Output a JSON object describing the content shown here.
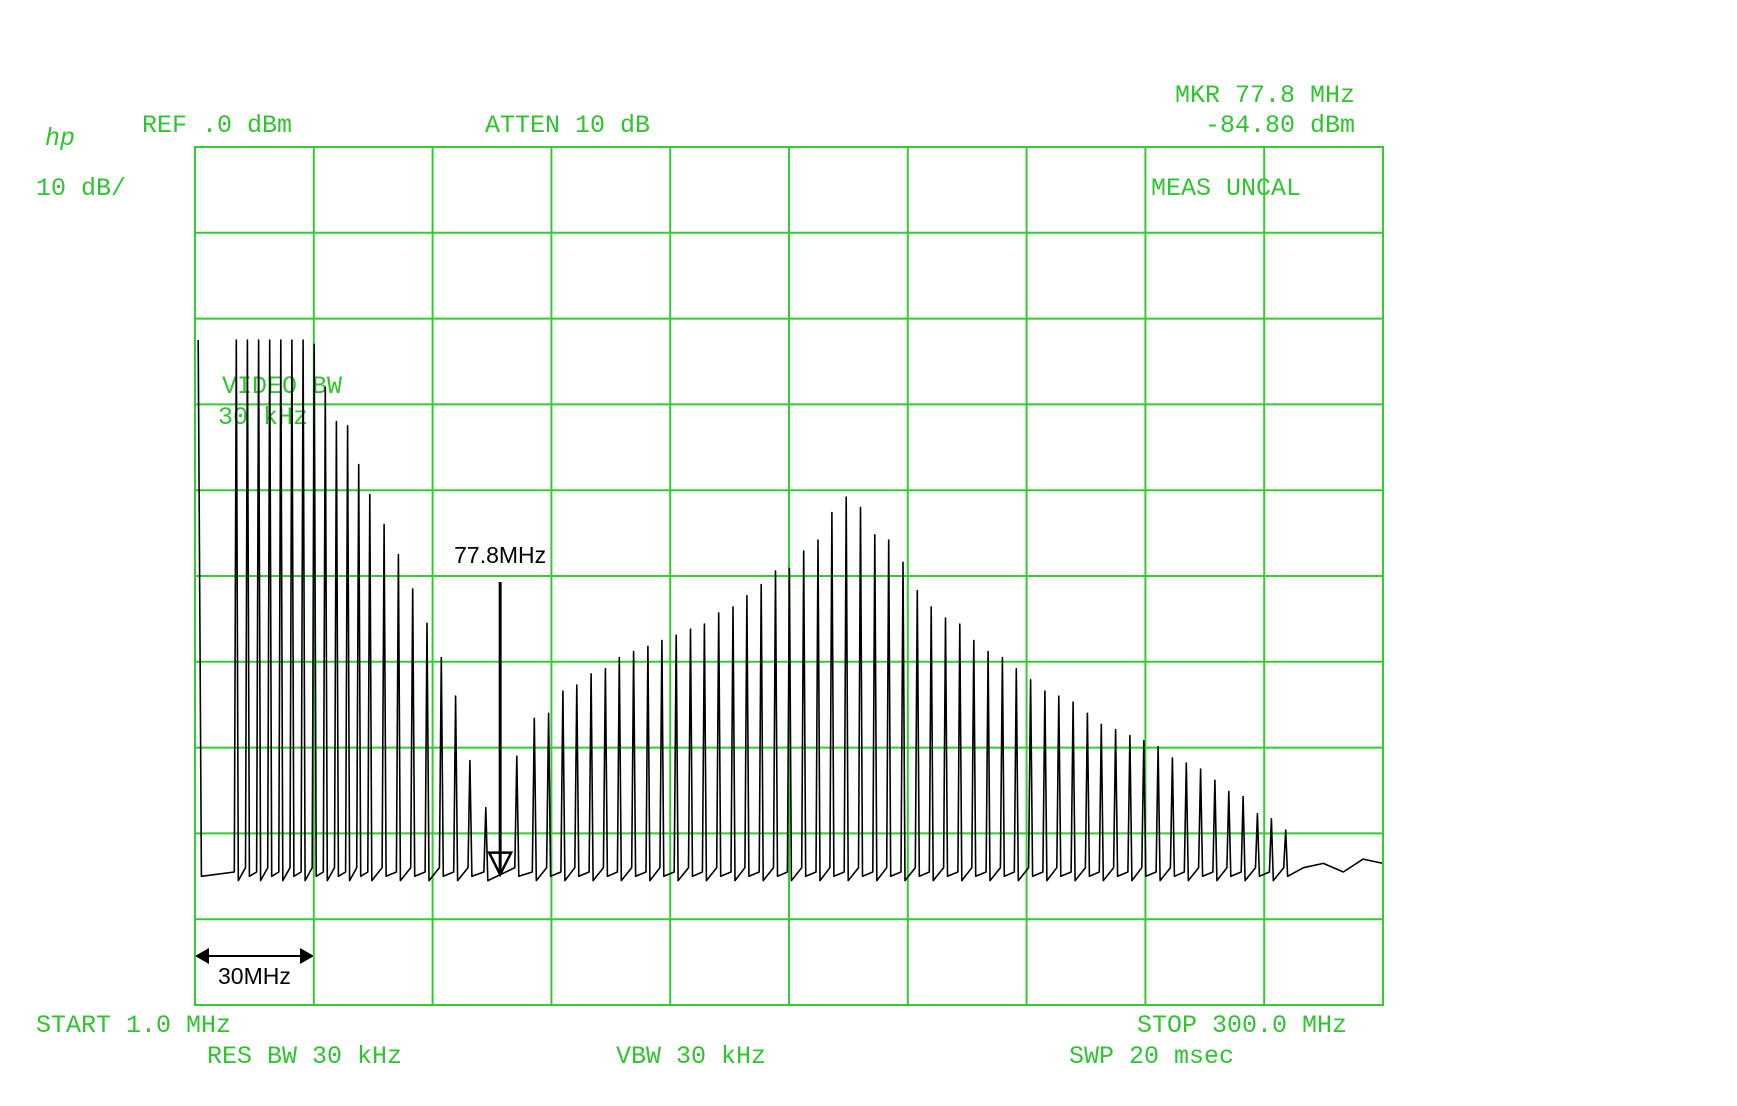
{
  "chart_data": {
    "type": "line",
    "header": {
      "logo": "hp",
      "ref": "REF .0 dBm",
      "atten": "ATTEN 10 dB",
      "scale": "10 dB/",
      "marker_freq": "MKR 77.8 MHz",
      "marker_level": "-84.80 dBm",
      "status": "MEAS UNCAL",
      "video_bw": [
        "VIDEO BW",
        "30 kHz"
      ]
    },
    "footer": {
      "start": "START 1.0 MHz",
      "stop": "STOP 300.0 MHz",
      "res_bw": "RES BW 30 kHz",
      "vbw": "VBW 30 kHz",
      "sweep": "SWP 20 msec"
    },
    "annotations": [
      {
        "text": "77.8MHz"
      },
      {
        "text": "30MHz"
      }
    ],
    "marker": {
      "x": 77.8,
      "y": -84.8
    },
    "xlim": [
      1,
      300
    ],
    "ylim": [
      -100,
      0
    ],
    "xticks": [
      1,
      30.9,
      60.8,
      90.7,
      120.6,
      150.5,
      180.4,
      210.3,
      240.2,
      270.1,
      300
    ],
    "yticks": [
      -100,
      -90,
      -80,
      -70,
      -60,
      -50,
      -40,
      -30,
      -20,
      -10,
      0
    ],
    "grid": true,
    "grid_color": "#33cc33",
    "series": [
      {
        "color": "#000000",
        "x": [
          1.8,
          2.6,
          10.9,
          11.4,
          11.9,
          13.7,
          14.2,
          14.7,
          16.5,
          17.0,
          17.5,
          19.3,
          19.8,
          20.3,
          22.1,
          22.6,
          23.1,
          24.9,
          25.4,
          25.9,
          27.7,
          28.2,
          28.7,
          30.5,
          31.0,
          31.5,
          33.3,
          33.8,
          34.3,
          36.1,
          36.6,
          37.1,
          38.9,
          39.4,
          39.9,
          41.7,
          42.2,
          42.7,
          44.5,
          45.0,
          45.5,
          48.1,
          48.6,
          49.1,
          51.7,
          52.2,
          52.7,
          55.3,
          55.8,
          56.3,
          58.9,
          59.4,
          59.9,
          62.5,
          63.0,
          63.5,
          66.1,
          66.6,
          67.1,
          69.7,
          70.2,
          70.7,
          73.7,
          74.2,
          74.7,
          81.5,
          82.0,
          82.5,
          85.9,
          86.4,
          86.9,
          89.5,
          90.0,
          90.5,
          93.1,
          93.6,
          94.1,
          96.6,
          97.1,
          97.6,
          100.2,
          100.7,
          101.2,
          103.8,
          104.3,
          104.8,
          107.3,
          107.8,
          108.3,
          110.9,
          111.4,
          111.9,
          114.5,
          115.0,
          115.5,
          118.0,
          118.5,
          119.0,
          121.6,
          122.1,
          122.6,
          125.2,
          125.7,
          126.2,
          128.7,
          129.2,
          129.7,
          132.3,
          132.8,
          133.3,
          135.9,
          136.4,
          136.9,
          139.4,
          139.9,
          140.4,
          143.0,
          143.5,
          144.0,
          146.6,
          147.1,
          147.6,
          150.1,
          150.6,
          151.1,
          153.7,
          154.2,
          154.7,
          157.3,
          157.8,
          158.3,
          160.8,
          161.3,
          161.8,
          164.4,
          164.9,
          165.4,
          168.0,
          168.5,
          169.0,
          171.6,
          172.1,
          172.6,
          175.1,
          175.6,
          176.1,
          178.7,
          179.2,
          179.7,
          182.3,
          182.8,
          183.3,
          185.8,
          186.3,
          186.8,
          189.4,
          189.9,
          190.4,
          193.0,
          193.5,
          194.0,
          196.5,
          197.0,
          197.5,
          200.1,
          200.6,
          201.1,
          203.7,
          204.2,
          204.7,
          207.2,
          207.7,
          208.2,
          210.8,
          211.3,
          211.8,
          214.4,
          214.9,
          215.4,
          217.9,
          218.4,
          218.9,
          221.5,
          222.0,
          222.5,
          225.1,
          225.6,
          226.1,
          228.6,
          229.1,
          229.6,
          232.2,
          232.7,
          233.2,
          235.8,
          236.3,
          236.8,
          239.3,
          239.8,
          240.3,
          242.9,
          243.4,
          243.9,
          246.5,
          247.0,
          247.5,
          250.0,
          250.5,
          251.0,
          253.6,
          254.1,
          254.6,
          257.2,
          257.7,
          258.2,
          260.7,
          261.2,
          261.7,
          264.3,
          264.8,
          265.3,
          267.9,
          268.4,
          268.9,
          271.4,
          271.9,
          272.4,
          275.0,
          275.5,
          276.0,
          280.0,
          285.0,
          290.0,
          295.0,
          300.0
        ],
        "values": [
          -22.5,
          -85.0,
          -84.5,
          -22.5,
          -85.5,
          -84.0,
          -22.5,
          -85.0,
          -84.5,
          -22.5,
          -85.5,
          -84.0,
          -22.5,
          -85.0,
          -84.5,
          -22.5,
          -85.5,
          -84.0,
          -22.5,
          -85.0,
          -84.5,
          -22.5,
          -85.5,
          -84.0,
          -23.0,
          -85.0,
          -84.5,
          -28.0,
          -85.5,
          -84.0,
          -32.0,
          -85.0,
          -84.5,
          -32.5,
          -85.5,
          -84.0,
          -37.0,
          -85.0,
          -84.5,
          -40.5,
          -85.5,
          -84.0,
          -44.0,
          -85.0,
          -84.5,
          -47.5,
          -85.5,
          -84.0,
          -51.5,
          -85.0,
          -84.5,
          -55.5,
          -85.5,
          -84.0,
          -59.5,
          -85.0,
          -84.5,
          -64.0,
          -85.5,
          -84.0,
          -71.5,
          -85.0,
          -84.5,
          -77.0,
          -85.5,
          -84.0,
          -71.0,
          -85.0,
          -84.5,
          -66.6,
          -85.5,
          -84.0,
          -66.0,
          -85.0,
          -84.5,
          -63.4,
          -85.5,
          -84.0,
          -62.7,
          -85.0,
          -84.5,
          -61.4,
          -85.5,
          -84.0,
          -60.8,
          -85.0,
          -84.5,
          -59.5,
          -85.5,
          -84.0,
          -58.8,
          -85.0,
          -84.5,
          -58.2,
          -85.5,
          -84.0,
          -57.5,
          -85.0,
          -84.5,
          -56.9,
          -85.5,
          -84.0,
          -56.2,
          -85.0,
          -84.5,
          -55.6,
          -85.5,
          -84.0,
          -54.3,
          -85.0,
          -84.5,
          -53.6,
          -85.5,
          -84.0,
          -52.3,
          -85.0,
          -84.5,
          -51.0,
          -85.5,
          -84.0,
          -49.4,
          -85.0,
          -84.5,
          -49.1,
          -85.5,
          -84.0,
          -47.1,
          -85.0,
          -84.5,
          -45.8,
          -85.5,
          -84.0,
          -42.6,
          -85.0,
          -84.5,
          -40.8,
          -85.5,
          -84.0,
          -42.0,
          -85.0,
          -84.5,
          -45.2,
          -85.5,
          -84.0,
          -45.8,
          -85.0,
          -84.5,
          -48.4,
          -85.5,
          -84.0,
          -51.7,
          -85.0,
          -84.5,
          -53.6,
          -85.5,
          -84.0,
          -54.9,
          -85.0,
          -84.5,
          -55.6,
          -85.5,
          -84.0,
          -57.5,
          -85.0,
          -84.5,
          -58.8,
          -85.5,
          -84.0,
          -59.5,
          -85.0,
          -84.5,
          -60.8,
          -85.5,
          -84.0,
          -62.1,
          -85.0,
          -84.5,
          -63.4,
          -85.5,
          -84.0,
          -64.0,
          -85.0,
          -84.5,
          -64.7,
          -85.5,
          -84.0,
          -66.0,
          -85.0,
          -84.5,
          -67.3,
          -85.5,
          -84.0,
          -67.9,
          -85.0,
          -84.5,
          -68.6,
          -85.5,
          -84.0,
          -69.2,
          -85.0,
          -84.5,
          -69.9,
          -85.5,
          -84.0,
          -71.2,
          -85.0,
          -84.5,
          -71.8,
          -85.5,
          -84.0,
          -72.5,
          -85.0,
          -84.5,
          -73.8,
          -85.5,
          -84.0,
          -75.1,
          -85.0,
          -84.5,
          -75.7,
          -85.5,
          -84.0,
          -77.7,
          -85.0,
          -84.5,
          -78.3,
          -85.5,
          -84.0,
          -79.6,
          -85.0,
          -84.0,
          -83.5,
          -84.5,
          -83.0,
          -83.5
        ]
      }
    ]
  }
}
